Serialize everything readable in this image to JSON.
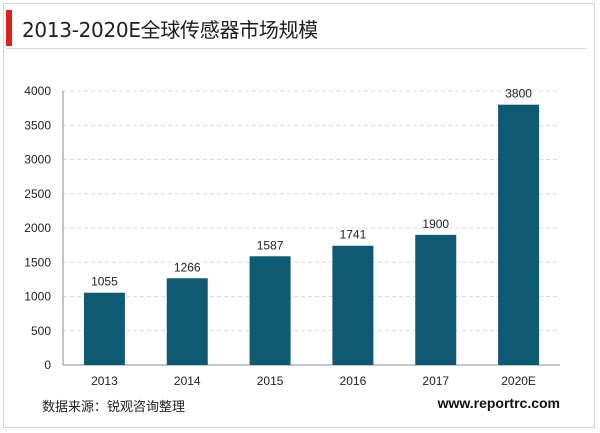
{
  "header": {
    "title": "2013-2020E全球传感器市场规模"
  },
  "footer": {
    "source": "数据来源：锐观咨询整理",
    "website": "www.reportrc.com"
  },
  "colors": {
    "bar": "#0e5a73",
    "accent": "#e0201c",
    "grid": "#d9d9d9",
    "axis": "#8c8c8c"
  },
  "chart_data": {
    "type": "bar",
    "title": "2013-2020E全球传感器市场规模",
    "categories": [
      "2013",
      "2014",
      "2015",
      "2016",
      "2017",
      "2020E"
    ],
    "values": [
      1055,
      1266,
      1587,
      1741,
      1900,
      3800
    ],
    "data_labels": [
      "1055",
      "1266",
      "1587",
      "1741",
      "1900",
      "3800"
    ],
    "ylim": [
      0,
      4000
    ],
    "yticks": [
      "0",
      "500",
      "1000",
      "1500",
      "2000",
      "2500",
      "3000",
      "3500",
      "4000"
    ],
    "xlabel": "",
    "ylabel": "",
    "grid": "horizontal dashed",
    "legend": "none"
  }
}
